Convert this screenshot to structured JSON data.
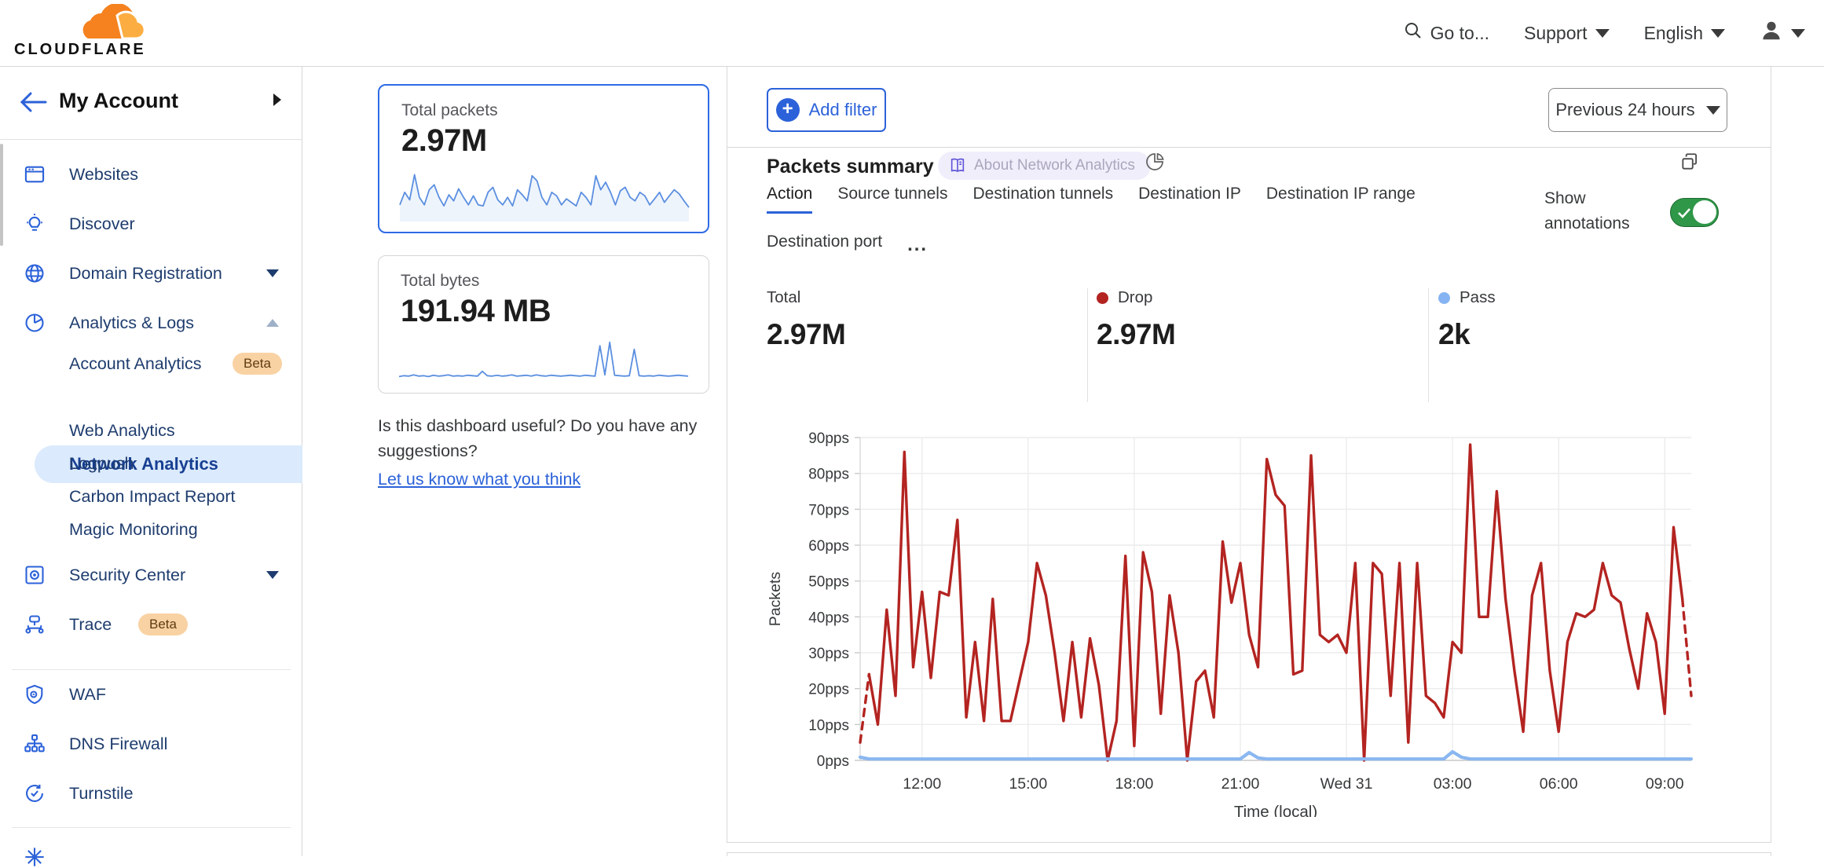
{
  "topnav": {
    "logo_text": "CLOUDFLARE",
    "goto_label": "Go to...",
    "support_label": "Support",
    "language_label": "English"
  },
  "sidebar": {
    "account_title": "My Account",
    "items": [
      {
        "label": "Websites"
      },
      {
        "label": "Discover"
      },
      {
        "label": "Domain Registration"
      },
      {
        "label": "Analytics & Logs",
        "expanded": true
      },
      {
        "label": "Account Analytics",
        "badge": "Beta"
      },
      {
        "label": "Network Analytics",
        "selected": true
      },
      {
        "label": "Web Analytics"
      },
      {
        "label": "Logpush"
      },
      {
        "label": "Carbon Impact Report"
      },
      {
        "label": "Magic Monitoring"
      },
      {
        "label": "Security Center"
      },
      {
        "label": "Trace",
        "badge": "Beta"
      },
      {
        "label": "WAF"
      },
      {
        "label": "DNS Firewall"
      },
      {
        "label": "Turnstile"
      }
    ]
  },
  "summary_cards": [
    {
      "title": "Total packets",
      "value": "2.97M",
      "selected": true,
      "sparkline": [
        30,
        55,
        40,
        90,
        45,
        30,
        60,
        70,
        45,
        28,
        50,
        38,
        62,
        45,
        30,
        48,
        30,
        28,
        55,
        65,
        40,
        30,
        45,
        28,
        60,
        50,
        38,
        88,
        78,
        45,
        30,
        55,
        48,
        30,
        42,
        35,
        28,
        55,
        45,
        30,
        88,
        60,
        75,
        55,
        30,
        58,
        65,
        45,
        38,
        55,
        48,
        30,
        42,
        55,
        35,
        48,
        60,
        52,
        38,
        25
      ]
    },
    {
      "title": "Total bytes",
      "value": "191.94 MB",
      "selected": false,
      "sparkline": [
        10,
        12,
        11,
        14,
        11,
        12,
        10,
        13,
        11,
        12,
        14,
        11,
        12,
        11,
        13,
        12,
        11,
        22,
        12,
        11,
        13,
        11,
        12,
        14,
        11,
        12,
        13,
        11,
        14,
        12,
        11,
        13,
        12,
        11,
        12,
        13,
        12,
        11,
        13,
        12,
        11,
        80,
        14,
        88,
        13,
        12,
        11,
        12,
        72,
        12,
        11,
        12,
        11,
        13,
        12,
        11,
        12,
        13,
        12,
        11
      ]
    }
  ],
  "feedback": {
    "question_line1": "Is this dashboard useful? Do you have any",
    "question_line2": "suggestions?",
    "link": "Let us know what you think"
  },
  "toolbar": {
    "add_filter_label": "Add filter",
    "plus_glyph": "+",
    "time_range_label": "Previous 24 hours"
  },
  "panel": {
    "title": "Packets summary",
    "about_badge": "About Network Analytics",
    "tabs": [
      {
        "label": "Action",
        "active": true
      },
      {
        "label": "Source tunnels"
      },
      {
        "label": "Destination tunnels"
      },
      {
        "label": "Destination IP"
      },
      {
        "label": "Destination IP range"
      },
      {
        "label": "Destination port"
      }
    ],
    "more_tabs_glyph": "...",
    "show_annotations_label": "Show annotations",
    "annotations_on": true
  },
  "stats": [
    {
      "label": "Total",
      "value": "2.97M",
      "dot": null
    },
    {
      "label": "Drop",
      "value": "2.97M",
      "dot": "#b32421"
    },
    {
      "label": "Pass",
      "value": "2k",
      "dot": "#86b4f2"
    }
  ],
  "colors": {
    "accent_blue": "#2c62d9",
    "selected_item_bg": "#dbeafc",
    "drop_line": "#b32421",
    "pass_line": "#8ab7f1",
    "sparkline_blue": "#5b8fe0",
    "toggle_green": "#2f9748",
    "beta_badge_bg": "#f9d2a3"
  },
  "chart_data": {
    "type": "line",
    "title": "Packets summary",
    "xlabel": "Time (local)",
    "ylabel": "Packets",
    "ylim": [
      0,
      90
    ],
    "grid": true,
    "sample_interval_minutes": 15,
    "y_ticks": [
      "0pps",
      "10pps",
      "20pps",
      "30pps",
      "40pps",
      "50pps",
      "60pps",
      "70pps",
      "80pps",
      "90pps"
    ],
    "x_ticks": [
      {
        "index": 7,
        "label": "12:00"
      },
      {
        "index": 19,
        "label": "15:00"
      },
      {
        "index": 31,
        "label": "18:00"
      },
      {
        "index": 43,
        "label": "21:00"
      },
      {
        "index": 55,
        "label": "Wed 31"
      },
      {
        "index": 67,
        "label": "03:00"
      },
      {
        "index": 79,
        "label": "06:00"
      },
      {
        "index": 91,
        "label": "09:00"
      }
    ],
    "series": [
      {
        "name": "Drop",
        "color": "#b32421",
        "dashed_head": true,
        "dashed_tail": true,
        "values": [
          5,
          24,
          10,
          42,
          18,
          86,
          26,
          47,
          23,
          47,
          46,
          67,
          12,
          33,
          11,
          45,
          11,
          11,
          22,
          33,
          55,
          46,
          30,
          11,
          33,
          12,
          34,
          21,
          0,
          11,
          57,
          4,
          58,
          47,
          13,
          46,
          30,
          0,
          22,
          25,
          12,
          61,
          44,
          55,
          35,
          26,
          84,
          74,
          71,
          24,
          25,
          85,
          35,
          33,
          35,
          30,
          55,
          0,
          55,
          52,
          18,
          55,
          5,
          55,
          18,
          16,
          12,
          33,
          30,
          88,
          40,
          40,
          75,
          45,
          25,
          8,
          46,
          55,
          25,
          8,
          33,
          41,
          40,
          42,
          55,
          46,
          44,
          31,
          20,
          41,
          33,
          13,
          65,
          45,
          18
        ]
      },
      {
        "name": "Pass",
        "color": "#8ab7f1",
        "values": [
          0.9,
          0.4,
          0.4,
          0.4,
          0.4,
          0.4,
          0.4,
          0.4,
          0.4,
          0.4,
          0.4,
          0.4,
          0.4,
          0.4,
          0.4,
          0.4,
          0.4,
          0.4,
          0.4,
          0.4,
          0.4,
          0.4,
          0.4,
          0.4,
          0.4,
          0.4,
          0.4,
          0.4,
          0.4,
          0.4,
          0.4,
          0.4,
          0.4,
          0.4,
          0.4,
          0.4,
          0.4,
          0.4,
          0.4,
          0.4,
          0.4,
          0.4,
          0.4,
          0.4,
          2.2,
          0.7,
          0.4,
          0.4,
          0.4,
          0.4,
          0.4,
          0.4,
          0.4,
          0.4,
          0.4,
          0.4,
          0.4,
          0.4,
          0.4,
          0.4,
          0.4,
          0.4,
          0.4,
          0.4,
          0.4,
          0.4,
          0.4,
          2.4,
          0.9,
          0.4,
          0.4,
          0.4,
          0.4,
          0.4,
          0.4,
          0.4,
          0.4,
          0.4,
          0.4,
          0.4,
          0.4,
          0.4,
          0.4,
          0.4,
          0.4,
          0.4,
          0.4,
          0.4,
          0.4,
          0.4,
          0.4,
          0.4,
          0.4,
          0.4,
          0.4
        ]
      }
    ]
  }
}
